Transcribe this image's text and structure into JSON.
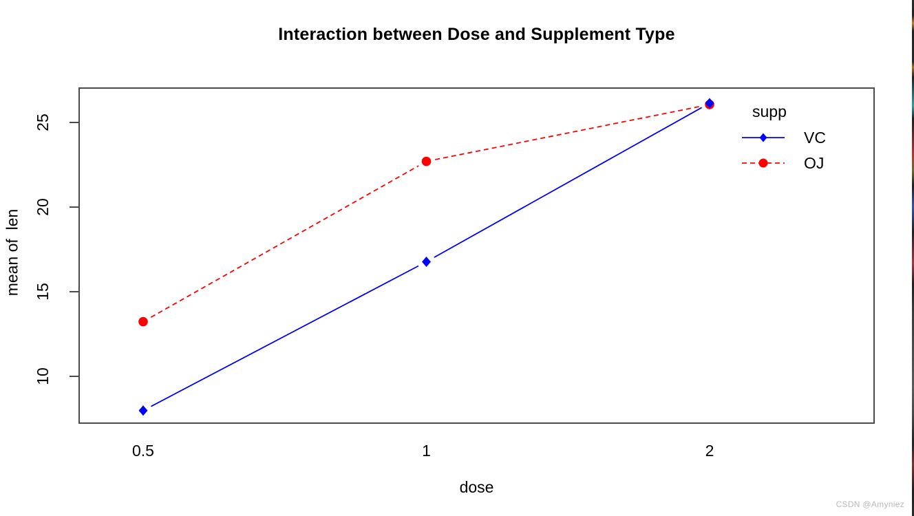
{
  "page": {
    "background": "#ffffff",
    "watermark": "CSDN @Amyniez"
  },
  "chart_data": {
    "type": "line",
    "title": "Interaction between Dose and Supplement Type",
    "xlabel": "dose",
    "ylabel": "mean of  len",
    "categories": [
      "0.5",
      "1",
      "2"
    ],
    "series": [
      {
        "name": "VC",
        "color": "#0000ff",
        "line_style": "solid",
        "marker": "diamond",
        "values": [
          7.98,
          16.77,
          26.14
        ]
      },
      {
        "name": "OJ",
        "color": "#ff0000",
        "line_style": "dashed",
        "marker": "circle",
        "values": [
          13.23,
          22.7,
          26.06
        ]
      }
    ],
    "yticks": [
      10,
      15,
      20,
      25
    ],
    "ylim": [
      7.2,
      27.0
    ],
    "grid": false,
    "legend_title": "supp",
    "legend_position": "top-right-inside",
    "axis_color": "#4a4a4a",
    "text_color": "#000000"
  }
}
